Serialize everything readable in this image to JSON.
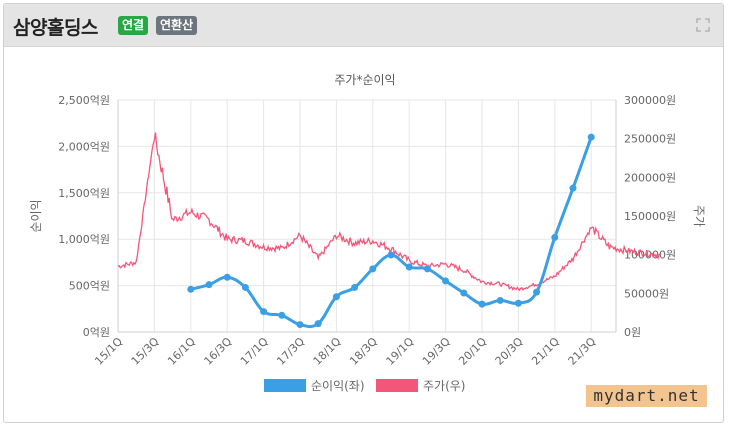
{
  "header": {
    "title": "삼양홀딩스",
    "badge_consolidated": "연결",
    "badge_annualized": "연환산"
  },
  "watermark": "mydart.net",
  "colors": {
    "net_income": "#3a9fe4",
    "price": "#f4567a"
  },
  "chart_data": {
    "type": "line",
    "title": "주가*순이익",
    "left_axis": {
      "label": "순이익",
      "min": 0,
      "max": 2500,
      "step": 500,
      "ticks": [
        "0억원",
        "500억원",
        "1,000억원",
        "1,500억원",
        "2,000억원",
        "2,500억원"
      ]
    },
    "right_axis": {
      "label": "주가",
      "min": 0,
      "max": 300000,
      "step": 50000,
      "ticks": [
        "0원",
        "50000원",
        "100000원",
        "150000원",
        "200000원",
        "250000원",
        "300000원"
      ]
    },
    "x_range": [
      "15/1Q",
      "22/2Q"
    ],
    "x_ticks": [
      "15/1Q",
      "15/3Q",
      "16/1Q",
      "16/3Q",
      "17/1Q",
      "17/3Q",
      "18/1Q",
      "18/3Q",
      "19/1Q",
      "19/3Q",
      "20/1Q",
      "20/3Q",
      "21/1Q",
      "21/3Q"
    ],
    "grid": true,
    "legend": "bottom",
    "series": [
      {
        "name": "순이익(좌)",
        "axis": "left",
        "x": [
          "16/1Q",
          "16/2Q",
          "16/3Q",
          "16/4Q",
          "17/1Q",
          "17/2Q",
          "17/3Q",
          "17/4Q",
          "18/1Q",
          "18/2Q",
          "18/3Q",
          "18/4Q",
          "19/1Q",
          "19/2Q",
          "19/3Q",
          "19/4Q",
          "20/1Q",
          "20/2Q",
          "20/3Q",
          "20/4Q",
          "21/1Q",
          "21/2Q",
          "21/3Q"
        ],
        "values": [
          460,
          510,
          590,
          480,
          220,
          180,
          80,
          90,
          380,
          480,
          680,
          830,
          700,
          680,
          550,
          420,
          300,
          340,
          310,
          430,
          1020,
          1550,
          2100
        ]
      },
      {
        "name": "주가(우)",
        "axis": "right",
        "x": [
          "15/1Q",
          "15/2Q",
          "15/3Q",
          "15/4Q",
          "16/1Q",
          "16/2Q",
          "16/3Q",
          "16/4Q",
          "17/1Q",
          "17/2Q",
          "17/3Q",
          "17/4Q",
          "18/1Q",
          "18/2Q",
          "18/3Q",
          "18/4Q",
          "19/1Q",
          "19/2Q",
          "19/3Q",
          "19/4Q",
          "20/1Q",
          "20/2Q",
          "20/3Q",
          "20/4Q",
          "21/1Q",
          "21/2Q",
          "21/3Q",
          "21/4Q",
          "22/1Q",
          "22/2Q"
        ],
        "values": [
          85000,
          90000,
          255000,
          145000,
          155000,
          145000,
          120000,
          118000,
          110000,
          108000,
          125000,
          95000,
          125000,
          115000,
          118000,
          108000,
          92000,
          85000,
          88000,
          80000,
          65000,
          62000,
          55000,
          62000,
          72000,
          95000,
          135000,
          110000,
          105000,
          102000
        ]
      }
    ]
  }
}
